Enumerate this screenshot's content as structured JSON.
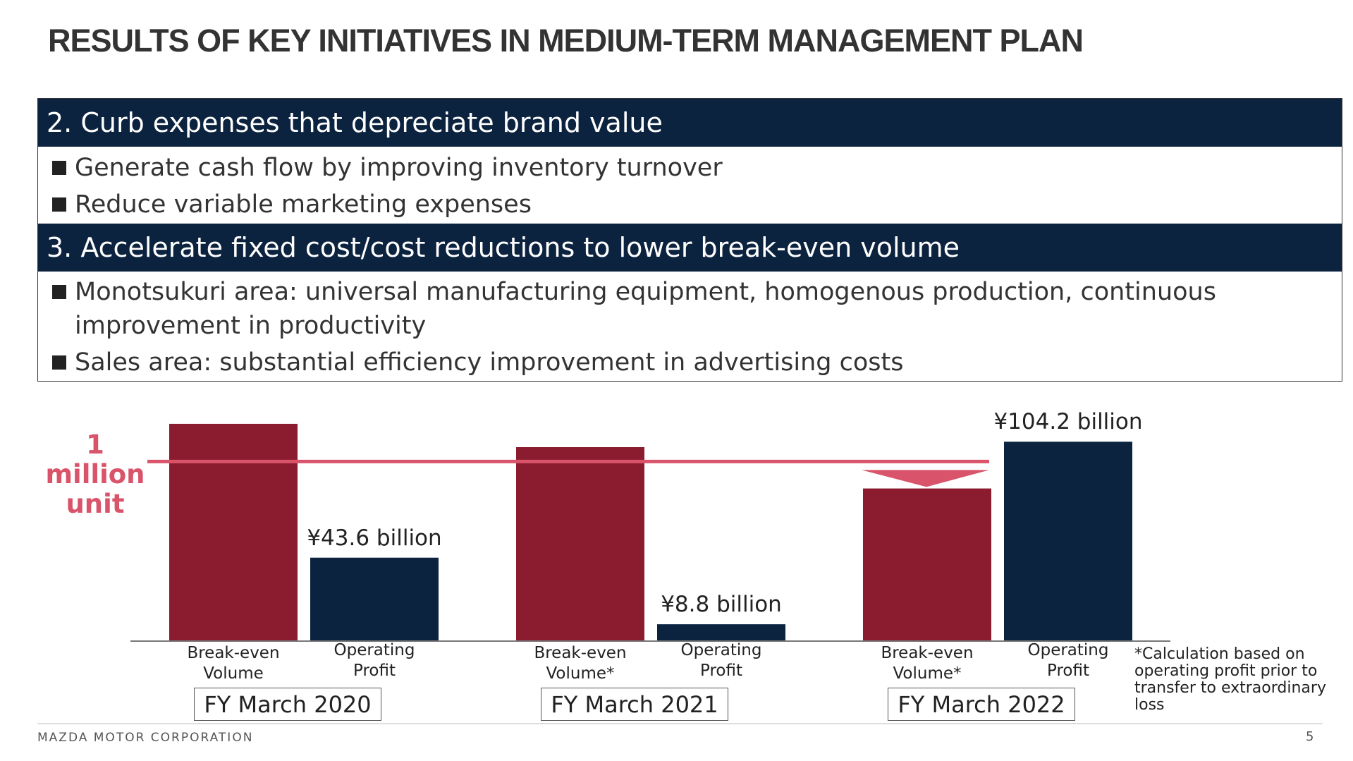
{
  "header": {
    "title": "RESULTS OF KEY INITIATIVES IN MEDIUM-TERM MANAGEMENT PLAN"
  },
  "sections": [
    {
      "heading": "2. Curb expenses that depreciate brand value",
      "bullets": [
        "Generate cash flow by improving inventory turnover",
        "Reduce variable marketing expenses"
      ]
    },
    {
      "heading": "3. Accelerate fixed cost/cost reductions to lower break-even volume",
      "bullets": [
        "Monotsukuri area: universal manufacturing equipment, homogenous production, continuous improvement in productivity",
        "Sales area: substantial efficiency improvement in advertising costs"
      ]
    }
  ],
  "chart_data": {
    "type": "bar",
    "categories": [
      "FY March 2020",
      "FY March 2021",
      "FY March 2022"
    ],
    "series": [
      {
        "labels": [
          "Break-even Volume",
          "Break-even Volume*",
          "Break-even Volume*"
        ],
        "color": "#8b1c2f",
        "values": [
          1.21,
          1.08,
          0.85
        ]
      },
      {
        "labels": [
          "Operating Profit",
          "Operating Profit",
          "Operating Profit"
        ],
        "color": "#0c2340",
        "values": [
          43.6,
          8.8,
          104.2
        ],
        "value_labels": [
          "¥43.6 billion",
          "¥8.8 billion",
          "¥104.2 billion"
        ],
        "axis": "y2"
      }
    ],
    "ylim": [
      0,
      1.3
    ],
    "y2lim": [
      0,
      122
    ],
    "reference_line": {
      "value": 1,
      "label": "1 million unit",
      "color": "#d9546a"
    },
    "footnote": "*Calculation based on operating profit prior to transfer to extraordinary loss"
  },
  "footer": {
    "company": "MAZDA MOTOR CORPORATION",
    "page": "5"
  }
}
